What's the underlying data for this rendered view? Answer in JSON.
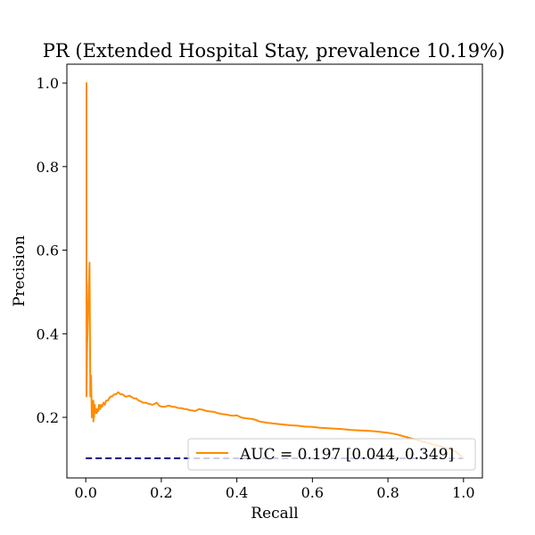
{
  "chart_data": {
    "type": "line",
    "title": "PR (Extended Hospital Stay, prevalence 10.19%)",
    "xlabel": "Recall",
    "ylabel": "Precision",
    "xlim": [
      -0.05,
      1.05
    ],
    "ylim": [
      0.055,
      1.045
    ],
    "x_ticks": [
      0.0,
      0.2,
      0.4,
      0.6,
      0.8,
      1.0
    ],
    "x_tick_labels": [
      "0.0",
      "0.2",
      "0.4",
      "0.6",
      "0.8",
      "1.0"
    ],
    "y_ticks": [
      0.2,
      0.4,
      0.6,
      0.8,
      1.0
    ],
    "y_tick_labels": [
      "0.2",
      "0.4",
      "0.6",
      "0.8",
      "1.0"
    ],
    "grid": false,
    "legend_placement": "lower-right",
    "series": [
      {
        "name": "AUC = 0.197 [0.044, 0.349]",
        "color": "#ff8c00",
        "style": "solid",
        "x": [
          0.0,
          0.0,
          0.002,
          0.002,
          0.004,
          0.004,
          0.006,
          0.008,
          0.008,
          0.01,
          0.012,
          0.014,
          0.016,
          0.018,
          0.019,
          0.02,
          0.02,
          0.022,
          0.022,
          0.024,
          0.025,
          0.027,
          0.029,
          0.031,
          0.033,
          0.035,
          0.038,
          0.04,
          0.043,
          0.047,
          0.05,
          0.054,
          0.058,
          0.062,
          0.066,
          0.07,
          0.075,
          0.08,
          0.086,
          0.092,
          0.098,
          0.104,
          0.11,
          0.116,
          0.122,
          0.128,
          0.134,
          0.14,
          0.146,
          0.152,
          0.158,
          0.164,
          0.17,
          0.176,
          0.182,
          0.188,
          0.194,
          0.2,
          0.206,
          0.212,
          0.218,
          0.224,
          0.23,
          0.236,
          0.242,
          0.248,
          0.254,
          0.26,
          0.266,
          0.272,
          0.278,
          0.284,
          0.29,
          0.3,
          0.31,
          0.32,
          0.33,
          0.34,
          0.35,
          0.36,
          0.37,
          0.38,
          0.39,
          0.4,
          0.41,
          0.42,
          0.43,
          0.44,
          0.45,
          0.46,
          0.48,
          0.5,
          0.52,
          0.54,
          0.56,
          0.58,
          0.6,
          0.62,
          0.64,
          0.66,
          0.68,
          0.7,
          0.72,
          0.74,
          0.76,
          0.78,
          0.8,
          0.82,
          0.84,
          0.86,
          0.88,
          0.9,
          0.92,
          0.94,
          0.96,
          0.98,
          1.0
        ],
        "y": [
          1.0,
          1.0,
          1.0,
          0.25,
          0.4,
          0.38,
          0.45,
          0.52,
          0.5,
          0.57,
          0.25,
          0.3,
          0.2,
          0.23,
          0.22,
          0.24,
          0.19,
          0.22,
          0.2,
          0.23,
          0.21,
          0.22,
          0.21,
          0.22,
          0.215,
          0.23,
          0.22,
          0.23,
          0.225,
          0.235,
          0.23,
          0.24,
          0.24,
          0.245,
          0.25,
          0.25,
          0.255,
          0.255,
          0.26,
          0.255,
          0.255,
          0.25,
          0.25,
          0.252,
          0.248,
          0.245,
          0.245,
          0.24,
          0.238,
          0.235,
          0.235,
          0.233,
          0.232,
          0.23,
          0.232,
          0.235,
          0.228,
          0.226,
          0.225,
          0.226,
          0.228,
          0.227,
          0.225,
          0.225,
          0.223,
          0.222,
          0.222,
          0.22,
          0.22,
          0.218,
          0.217,
          0.216,
          0.215,
          0.22,
          0.218,
          0.215,
          0.214,
          0.213,
          0.21,
          0.208,
          0.207,
          0.205,
          0.204,
          0.205,
          0.2,
          0.198,
          0.197,
          0.196,
          0.194,
          0.19,
          0.187,
          0.185,
          0.183,
          0.181,
          0.18,
          0.178,
          0.177,
          0.175,
          0.174,
          0.173,
          0.172,
          0.17,
          0.169,
          0.168,
          0.167,
          0.165,
          0.163,
          0.16,
          0.155,
          0.15,
          0.145,
          0.14,
          0.135,
          0.13,
          0.125,
          0.118,
          0.102
        ]
      },
      {
        "name": "",
        "color": "#00008b",
        "style": "dashed",
        "x": [
          0.0,
          1.0
        ],
        "y": [
          0.1019,
          0.1019
        ]
      }
    ]
  }
}
